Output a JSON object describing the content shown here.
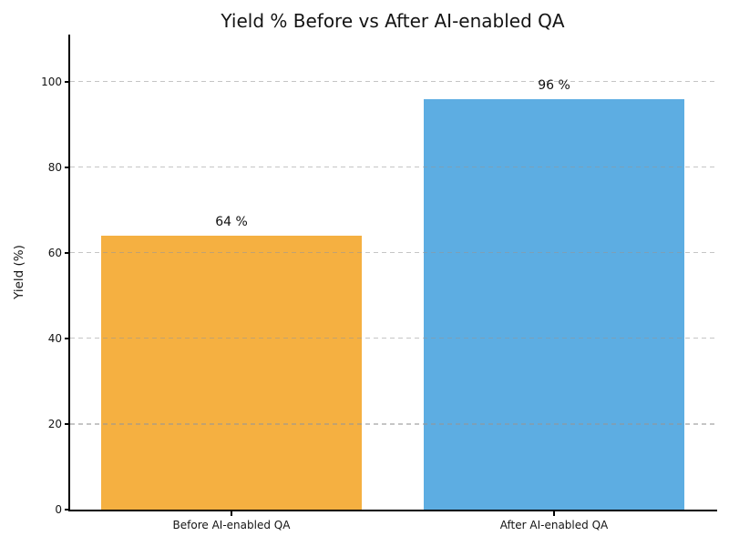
{
  "chart_data": {
    "type": "bar",
    "title": "Yield % Before vs After AI-enabled QA",
    "categories": [
      "Before AI-enabled QA",
      "After AI-enabled QA"
    ],
    "values": [
      64,
      96
    ],
    "bar_labels": [
      "64 %",
      "96 %"
    ],
    "bar_colors": [
      "#F5B041",
      "#5DADE2"
    ],
    "xlabel": "",
    "ylabel": "Yield (%)",
    "yticks": [
      0,
      20,
      40,
      60,
      80,
      100
    ],
    "ylim": [
      0,
      111
    ],
    "xlim": [
      -0.5,
      1.5
    ],
    "bar_width_category_fraction": 0.81,
    "grid": {
      "axis": "y",
      "style": "dashed",
      "color": "#cccccc",
      "drawn_above_bars": true
    },
    "legend": "none",
    "background_color": "#ffffff",
    "spine_color": "#000000",
    "text_color": "#141414"
  }
}
